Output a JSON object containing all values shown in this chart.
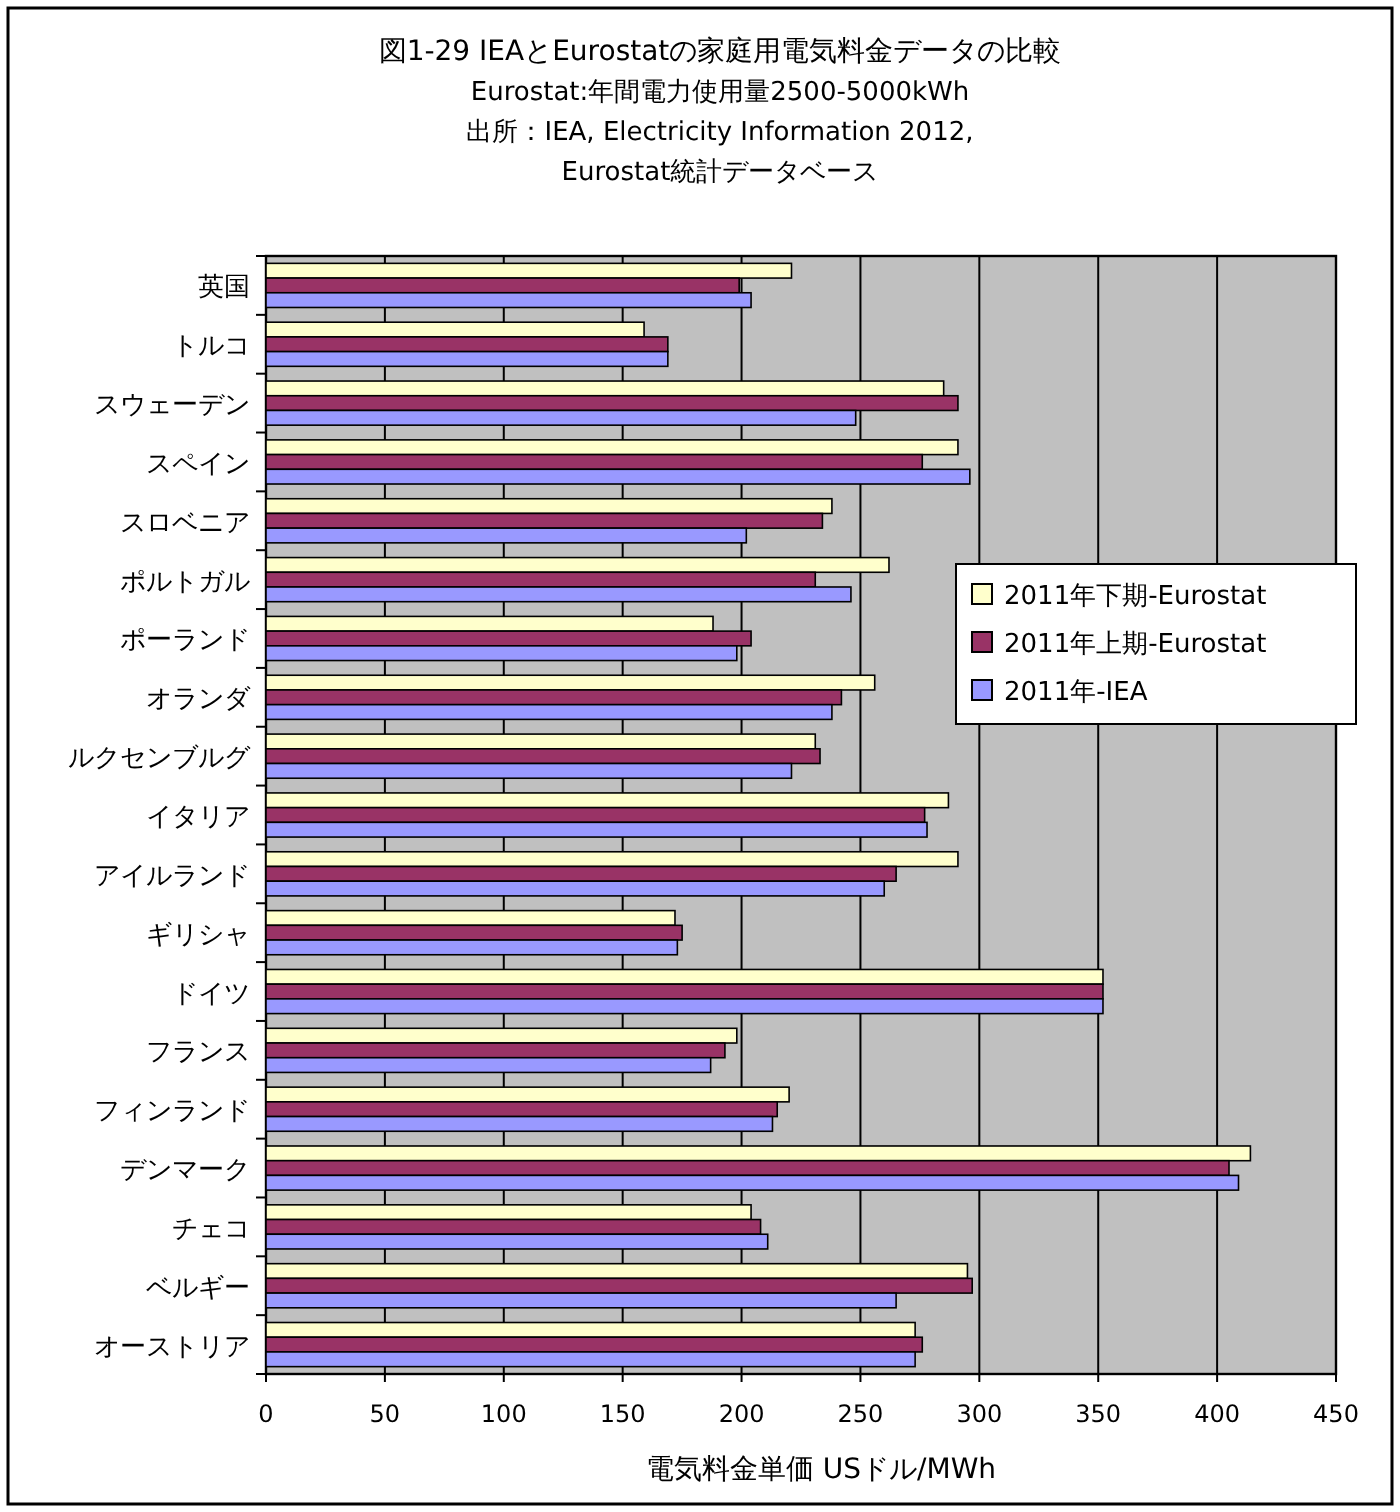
{
  "chart_data": {
    "type": "bar",
    "orientation": "horizontal",
    "title": "図1-29  IEAとEurostatの家庭用電気料金データの比較",
    "subtitle": "Eurostat:年間電力使用量2500-5000kWh",
    "annotations": [
      "出所：IEA, Electricity Information 2012,",
      "Eurostat統計データベース"
    ],
    "categories": [
      "英国",
      "トルコ",
      "スウェーデン",
      "スペイン",
      "スロベニア",
      "ポルトガル",
      "ポーランド",
      "オランダ",
      "ルクセンブルグ",
      "イタリア",
      "アイルランド",
      "ギリシャ",
      "ドイツ",
      "フランス",
      "フィンランド",
      "デンマーク",
      "チェコ",
      "ベルギー",
      "オーストリア"
    ],
    "series": [
      {
        "name": "2011年下期-Eurostat",
        "color": "#ffffcc",
        "values": [
          221,
          159,
          285,
          291,
          238,
          262,
          188,
          256,
          231,
          287,
          291,
          172,
          352,
          198,
          220,
          414,
          204,
          295,
          273
        ]
      },
      {
        "name": "2011年上期-Eurostat",
        "color": "#993366",
        "values": [
          199,
          169,
          291,
          276,
          234,
          231,
          204,
          242,
          233,
          277,
          265,
          175,
          352,
          193,
          215,
          405,
          208,
          297,
          276
        ]
      },
      {
        "name": "2011年-IEA",
        "color": "#9999ff",
        "values": [
          204,
          169,
          248,
          296,
          202,
          246,
          198,
          238,
          221,
          278,
          260,
          173,
          352,
          187,
          213,
          409,
          211,
          265,
          273
        ]
      }
    ],
    "xlim": [
      0,
      450
    ],
    "xticks": [
      0,
      50,
      100,
      150,
      200,
      250,
      300,
      350,
      400,
      450
    ],
    "xlabel": "電気料金単価  USドル/MWh",
    "grid": "x",
    "legend": "right"
  }
}
